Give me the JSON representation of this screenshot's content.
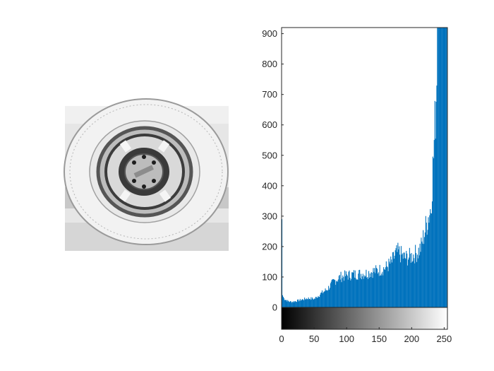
{
  "figure": {
    "left_panel": {
      "content": "grayscale photograph of a car tire and wheel",
      "interactable": false
    }
  },
  "chart_data": {
    "type": "bar",
    "x_range": [
      0,
      255
    ],
    "ylim": [
      0,
      920
    ],
    "yticks": [
      0,
      100,
      200,
      300,
      400,
      500,
      600,
      700,
      800,
      900
    ],
    "xticks": [
      0,
      50,
      100,
      150,
      200,
      250
    ],
    "bar_color": "#0072BD",
    "colorbar": {
      "from": "#000000",
      "to": "#ffffff",
      "range": [
        0,
        255
      ]
    },
    "grid": false,
    "histogram_keypoints": [
      [
        0,
        290
      ],
      [
        1,
        40
      ],
      [
        3,
        30
      ],
      [
        6,
        25
      ],
      [
        10,
        20
      ],
      [
        15,
        18
      ],
      [
        20,
        20
      ],
      [
        30,
        25
      ],
      [
        40,
        30
      ],
      [
        50,
        28
      ],
      [
        60,
        45
      ],
      [
        70,
        60
      ],
      [
        80,
        85
      ],
      [
        90,
        100
      ],
      [
        100,
        105
      ],
      [
        110,
        108
      ],
      [
        120,
        110
      ],
      [
        130,
        112
      ],
      [
        140,
        118
      ],
      [
        150,
        122
      ],
      [
        160,
        130
      ],
      [
        170,
        150
      ],
      [
        175,
        175
      ],
      [
        180,
        182
      ],
      [
        185,
        170
      ],
      [
        190,
        162
      ],
      [
        200,
        168
      ],
      [
        210,
        182
      ],
      [
        215,
        200
      ],
      [
        220,
        245
      ],
      [
        225,
        290
      ],
      [
        230,
        330
      ],
      [
        235,
        540
      ],
      [
        238,
        700
      ],
      [
        240,
        920
      ],
      [
        255,
        920
      ]
    ]
  }
}
